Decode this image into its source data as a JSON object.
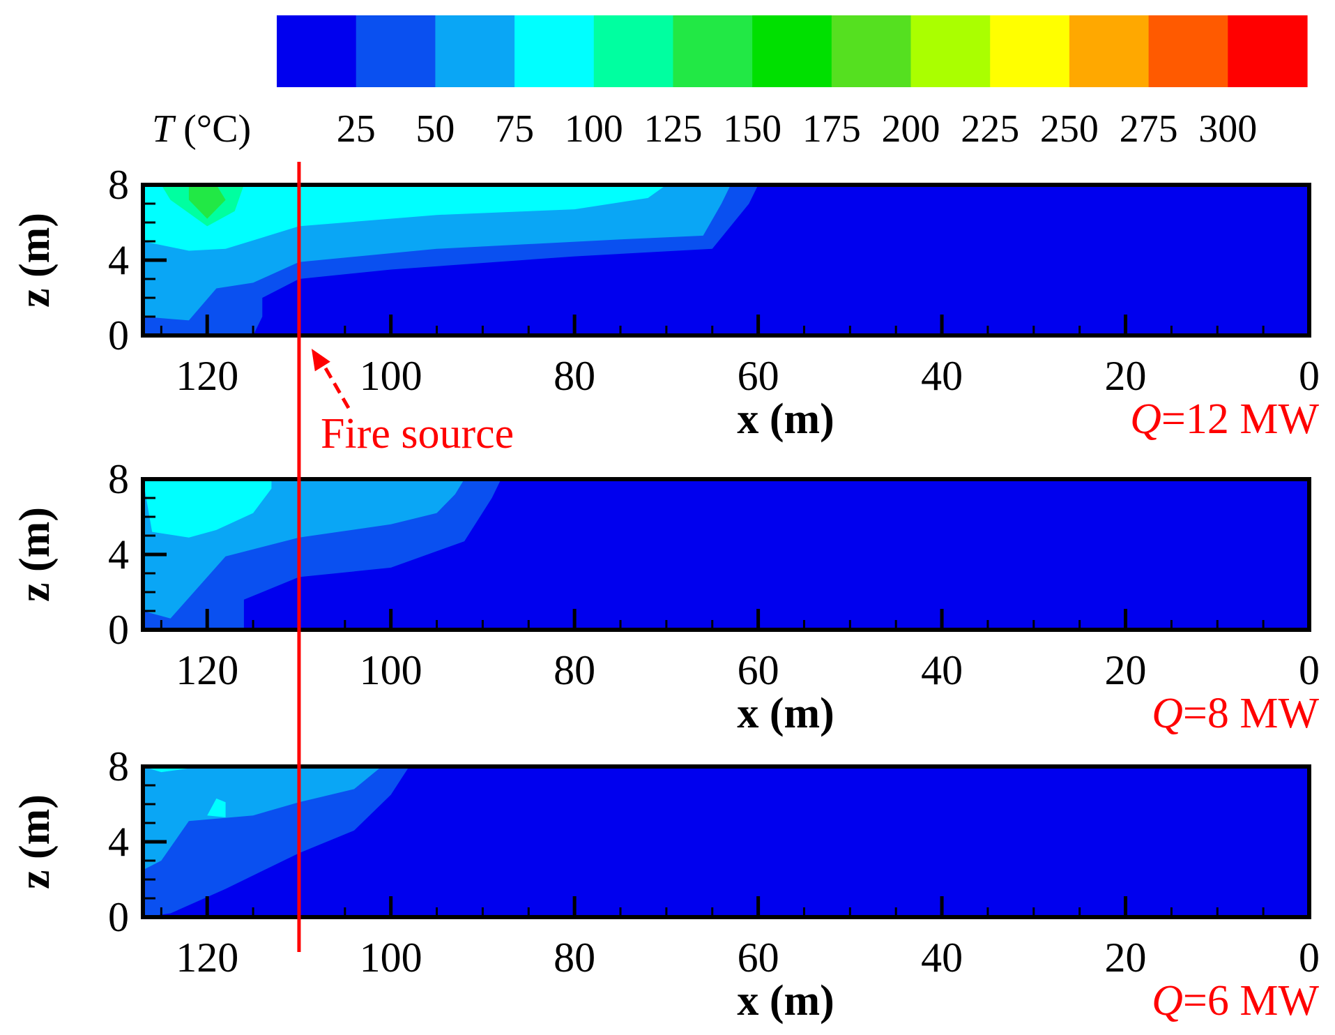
{
  "chart_data": {
    "type": "heatmap",
    "colorbar": {
      "label_italic": "T",
      "label_unit": " (°C)",
      "ticks": [
        "25",
        "50",
        "75",
        "100",
        "125",
        "150",
        "175",
        "200",
        "225",
        "250",
        "275",
        "300"
      ],
      "levels": [
        0,
        25,
        50,
        75,
        100,
        125,
        150,
        175,
        200,
        225,
        250,
        275,
        300
      ],
      "colors": [
        "#0000ee",
        "#0a50f0",
        "#0aa6f5",
        "#00ffff",
        "#00ffa0",
        "#22e845",
        "#00e000",
        "#55e020",
        "#aaff00",
        "#ffff00",
        "#ffa800",
        "#ff5a00",
        "#ff0000"
      ]
    },
    "fire_source": {
      "label": "Fire source",
      "x": 110
    },
    "panels": [
      {
        "q_italic": "Q",
        "q_rest": "=12 MW",
        "xlabel": "x (m)",
        "ylabel": "z (m)",
        "xlim": [
          127,
          0
        ],
        "ylim": [
          0,
          8
        ],
        "xticks": [
          "120",
          "100",
          "80",
          "60",
          "40",
          "20",
          "0"
        ],
        "yticks": [
          "8",
          "4",
          "0"
        ],
        "contours": [
          {
            "level": 25,
            "points": [
              [
                127,
                0
              ],
              [
                115,
                0
              ],
              [
                114,
                1
              ],
              [
                114,
                2
              ],
              [
                110,
                3
              ],
              [
                100,
                3.5
              ],
              [
                80,
                4.2
              ],
              [
                65,
                4.6
              ],
              [
                61,
                7
              ],
              [
                60,
                8
              ],
              [
                127,
                8
              ]
            ]
          },
          {
            "level": 50,
            "points": [
              [
                127,
                1
              ],
              [
                122,
                0.8
              ],
              [
                119,
                2.5
              ],
              [
                115,
                2.8
              ],
              [
                110,
                3.9
              ],
              [
                95,
                4.6
              ],
              [
                75,
                5.1
              ],
              [
                66,
                5.3
              ],
              [
                64,
                7
              ],
              [
                63,
                8
              ],
              [
                127,
                8
              ]
            ]
          },
          {
            "level": 75,
            "points": [
              [
                127,
                5
              ],
              [
                122,
                4.5
              ],
              [
                118,
                4.6
              ],
              [
                110,
                5.8
              ],
              [
                95,
                6.4
              ],
              [
                80,
                6.7
              ],
              [
                72,
                7.3
              ],
              [
                70,
                8
              ],
              [
                127,
                8
              ]
            ]
          },
          {
            "level": 100,
            "points": [
              [
                124,
                7.2
              ],
              [
                120,
                5.8
              ],
              [
                117,
                6.6
              ],
              [
                116,
                8
              ],
              [
                125,
                8
              ]
            ]
          },
          {
            "level": 125,
            "points": [
              [
                122,
                7.2
              ],
              [
                120,
                6.2
              ],
              [
                118,
                7.2
              ],
              [
                119,
                8
              ],
              [
                122,
                8
              ]
            ]
          }
        ]
      },
      {
        "q_italic": "Q",
        "q_rest": "=8 MW",
        "xlabel": "x (m)",
        "ylabel": "z (m)",
        "xlim": [
          127,
          0
        ],
        "ylim": [
          0,
          8
        ],
        "xticks": [
          "120",
          "100",
          "80",
          "60",
          "40",
          "20",
          "0"
        ],
        "yticks": [
          "8",
          "4",
          "0"
        ],
        "contours": [
          {
            "level": 25,
            "points": [
              [
                127,
                0
              ],
              [
                116,
                0
              ],
              [
                116,
                1.6
              ],
              [
                110,
                2.8
              ],
              [
                100,
                3.3
              ],
              [
                92,
                4.7
              ],
              [
                89,
                7
              ],
              [
                88,
                8
              ],
              [
                127,
                8
              ]
            ]
          },
          {
            "level": 50,
            "points": [
              [
                127,
                1
              ],
              [
                124,
                0.6
              ],
              [
                118,
                3.9
              ],
              [
                110,
                4.9
              ],
              [
                100,
                5.6
              ],
              [
                95,
                6.2
              ],
              [
                93,
                7.2
              ],
              [
                92,
                8
              ],
              [
                127,
                8
              ]
            ]
          },
          {
            "level": 75,
            "points": [
              [
                126,
                5.2
              ],
              [
                122,
                4.9
              ],
              [
                119,
                5.3
              ],
              [
                115,
                6.2
              ],
              [
                113,
                7.5
              ],
              [
                113,
                8
              ],
              [
                127,
                8
              ]
            ]
          }
        ]
      },
      {
        "q_italic": "Q",
        "q_rest": "=6 MW",
        "xlabel": "x (m)",
        "ylabel": "z (m)",
        "xlim": [
          127,
          0
        ],
        "ylim": [
          0,
          8
        ],
        "xticks": [
          "120",
          "100",
          "80",
          "60",
          "40",
          "20",
          "0"
        ],
        "yticks": [
          "8",
          "4",
          "0"
        ],
        "contours": [
          {
            "level": 25,
            "points": [
              [
                127,
                0
              ],
              [
                124,
                0.2
              ],
              [
                118,
                1.5
              ],
              [
                110,
                3.4
              ],
              [
                104,
                4.6
              ],
              [
                100,
                6.5
              ],
              [
                98,
                8
              ],
              [
                127,
                8
              ]
            ]
          },
          {
            "level": 50,
            "points": [
              [
                127,
                2.5
              ],
              [
                125,
                3
              ],
              [
                122,
                5.1
              ],
              [
                115,
                5.4
              ],
              [
                110,
                6.1
              ],
              [
                104,
                6.8
              ],
              [
                101,
                8
              ],
              [
                127,
                8
              ]
            ]
          },
          {
            "level": 75,
            "points": [
              [
                125,
                7.7
              ],
              [
                122,
                7.9
              ],
              [
                122,
                8
              ],
              [
                127,
                8
              ]
            ]
          },
          {
            "level": 75,
            "points": [
              [
                120,
                5.4
              ],
              [
                118,
                5.3
              ],
              [
                118,
                6.1
              ],
              [
                119,
                6.3
              ]
            ]
          }
        ]
      }
    ]
  }
}
